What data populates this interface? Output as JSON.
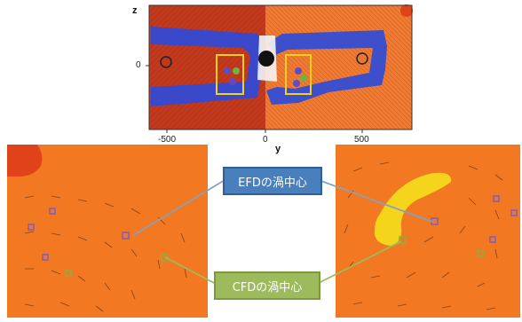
{
  "top_plot": {
    "axis_vertical_label": "z",
    "axis_horizontal_label": "y",
    "y_tick_label": "0",
    "x_tick_labels": [
      "-500",
      "0",
      "500"
    ],
    "left_color": "#c0391f",
    "right_color": "#f07a32",
    "band_color": "#2f4bd8",
    "roi_color": "#f2d21a"
  },
  "panels": {
    "field_color": "#f27821",
    "corner_color": "#e0421a",
    "vortex_region_color": "#f5d51b",
    "efd_marker_color": "#7a5ec8",
    "cfd_marker_color": "#86b33b"
  },
  "callouts": {
    "efd_label": "EFDの渦中心",
    "cfd_label": "CFDの渦中心",
    "efd_color": "#4a7fbd",
    "cfd_color": "#9dbb5d",
    "leader_color": "#8aa0b8"
  }
}
